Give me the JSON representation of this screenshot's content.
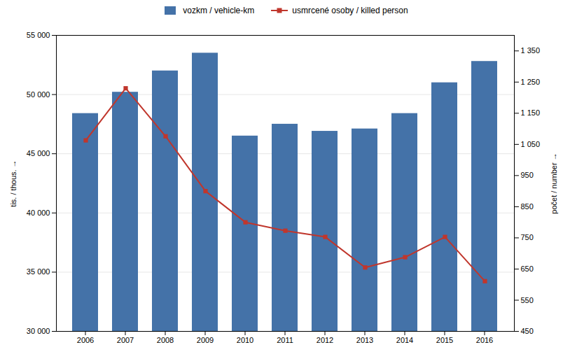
{
  "chart_data": {
    "type": "bar",
    "categories": [
      "2006",
      "2007",
      "2008",
      "2009",
      "2010",
      "2011",
      "2012",
      "2013",
      "2014",
      "2015",
      "2016"
    ],
    "series": [
      {
        "name": "vozkm / vehicle-km",
        "type": "bar",
        "color": "#4472a8",
        "values": [
          48400,
          50200,
          52000,
          53500,
          46500,
          47500,
          46900,
          47100,
          48400,
          51000,
          52800
        ]
      },
      {
        "name": "usmrcené osoby / killed person",
        "type": "line",
        "axis": "y2",
        "color": "#c0362c",
        "marker": "square",
        "values": [
          1063,
          1230,
          1076,
          900,
          800,
          773,
          753,
          655,
          688,
          753,
          611
        ]
      }
    ],
    "ylabel": "tis. / thous.",
    "y2label": "počet / number",
    "ylim": [
      30000,
      55000
    ],
    "yticks": [
      {
        "value": 30000,
        "label": "30 000"
      },
      {
        "value": 35000,
        "label": "35 000"
      },
      {
        "value": 40000,
        "label": "40 000"
      },
      {
        "value": 45000,
        "label": "45 000"
      },
      {
        "value": 50000,
        "label": "50 000"
      },
      {
        "value": 55000,
        "label": "55 000"
      }
    ],
    "y2lim": [
      450,
      1400
    ],
    "y2ticks": [
      450,
      550,
      650,
      750,
      850,
      950,
      {
        "value": 1050,
        "label": "1 050"
      },
      {
        "value": 1150,
        "label": "1 150"
      },
      {
        "value": 1250,
        "label": "1 250"
      },
      {
        "value": 1350,
        "label": "1 350"
      }
    ],
    "grid": true
  }
}
